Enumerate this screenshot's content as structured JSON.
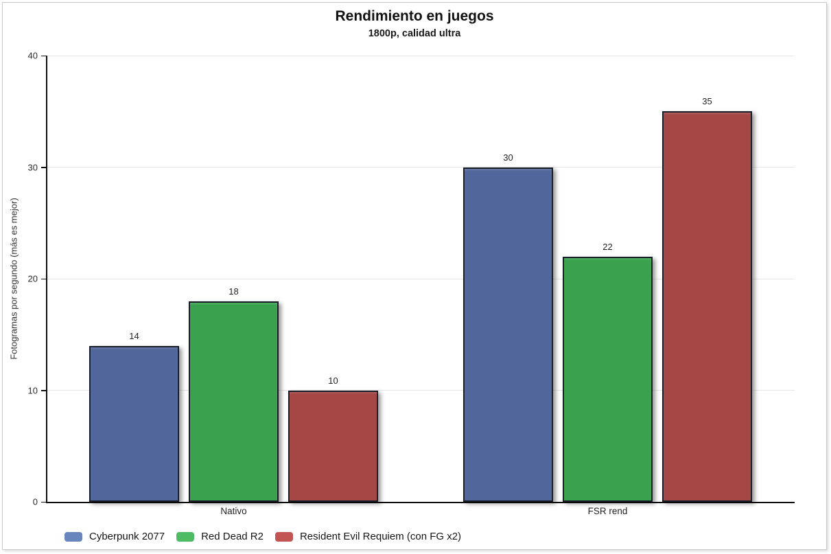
{
  "chart_data": {
    "type": "bar",
    "title": "Rendimiento en juegos",
    "subtitle": "1800p, calidad ultra",
    "ylabel": "Fotogramas por segundo (más es mejor)",
    "xlabel": "",
    "categories": [
      "Nativo",
      "FSR rend"
    ],
    "series": [
      {
        "name": "Cyberpunk 2077",
        "values": [
          14,
          30
        ],
        "color": "#51669a",
        "legend_color": "#6885bd"
      },
      {
        "name": "Red Dead R2",
        "values": [
          18,
          22
        ],
        "color": "#3aa14f",
        "legend_color": "#4dbb63"
      },
      {
        "name": "Resident Evil Requiem (con FG x2)",
        "values": [
          10,
          35
        ],
        "color": "#a44745",
        "legend_color": "#c25553"
      }
    ],
    "ylim": [
      0,
      40
    ],
    "yticks": [
      0,
      10,
      20,
      30,
      40
    ],
    "grid": true,
    "bar_border_color": "#171c26",
    "legend_position": "bottom-left"
  }
}
